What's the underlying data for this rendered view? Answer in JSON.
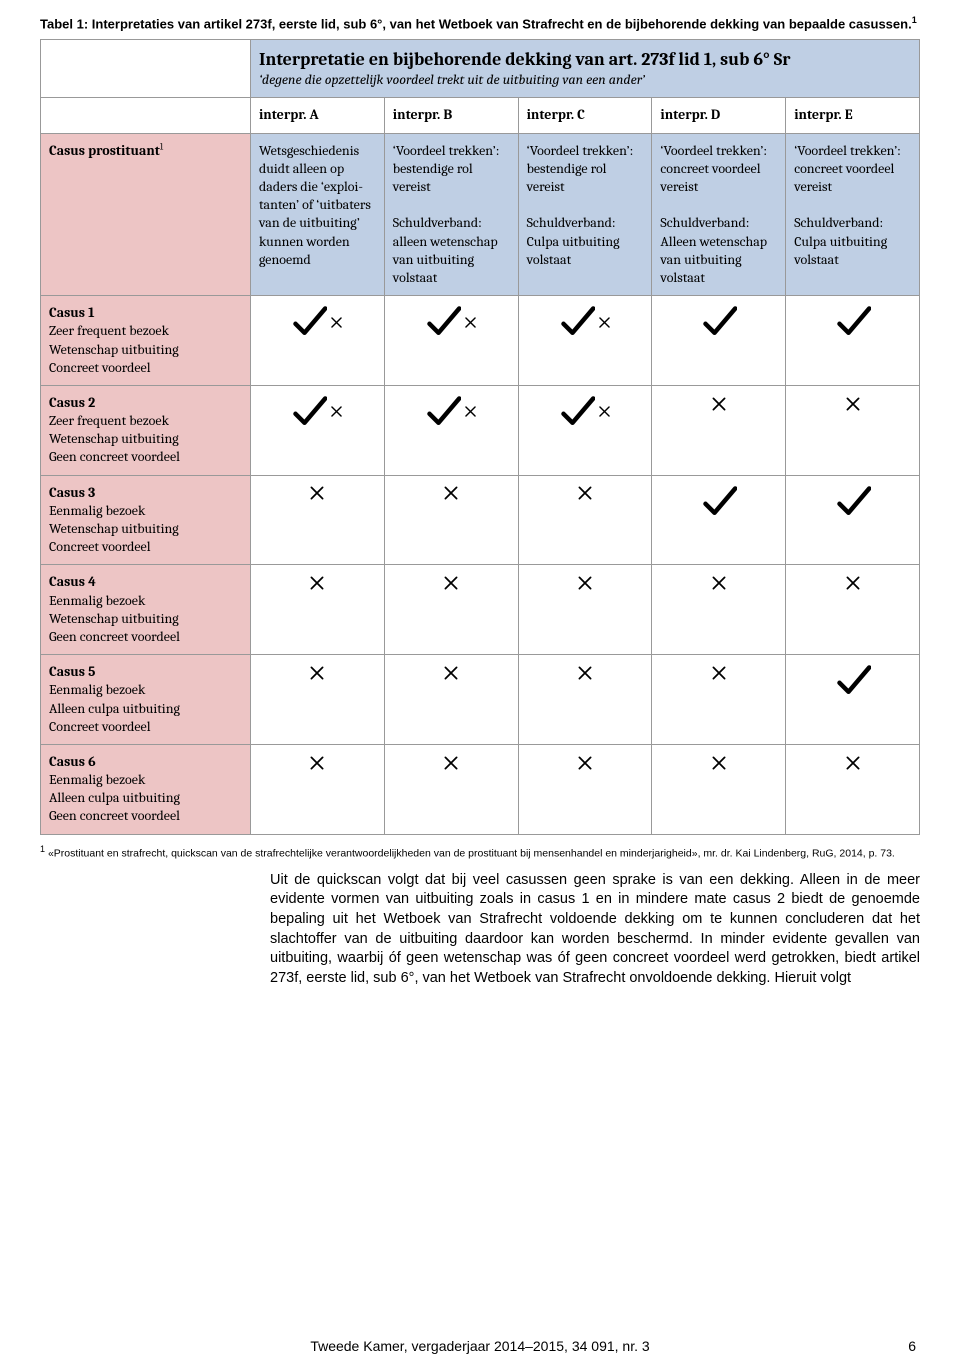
{
  "caption": "Tabel 1: Interpretaties van artikel 273f, eerste lid, sub 6°, van het Wetboek van Strafrecht en de bijbehorende dekking van bepaalde casussen.",
  "caption_sup": "1",
  "table": {
    "title": "Interpretatie en bijbehorende dekking van art. 273f lid 1, sub 6° Sr",
    "subtitle": "‘degene die opzettelijk voordeel trekt uit de uitbuiting van een ander’",
    "colors": {
      "header_bg": "#bfcfe4",
      "rowlabel_bg": "#edc5c5",
      "desc_bg": "#bfcfe4",
      "border": "#999999"
    },
    "col_header_row": [
      "",
      "interpr. A",
      "interpr. B",
      "interpr. C",
      "interpr. D",
      "interpr. E"
    ],
    "prostituant_row": {
      "label_title": "Casus prostituant",
      "label_sup": "1",
      "cells": [
        "Wetsgeschiedenis duidt alleen op daders die ‘exploi­tanten’ of ‘uitbaters van de uitbuiting’ kunnen worden genoemd",
        "‘Voordeel trekken’: bestendige rol vereist\n\nSchuldverband: alleen wetenschap van uitbuiting volstaat",
        "‘Voordeel trekken’: bestendige rol vereist\n\nSchuldverband: Culpa uitbuiting volstaat",
        "‘Voordeel trekken’: concreet voordeel vereist\n\nSchuldverband: Alleen wetenschap van uitbuiting volstaat",
        "‘Voordeel trekken’: concreet voordeel vereist\n\nSchuldverband: Culpa uitbuiting volstaat"
      ]
    },
    "casus_rows": [
      {
        "title": "Casus 1",
        "desc": "Zeer frequent bezoek\nWetenschap uitbuiting\nConcreet voordeel",
        "marks": [
          "check-x",
          "check-x",
          "check-x",
          "check",
          "check"
        ]
      },
      {
        "title": "Casus 2",
        "desc": "Zeer frequent bezoek\nWetenschap uitbuiting\nGeen concreet voordeel",
        "marks": [
          "check-x",
          "check-x",
          "check-x",
          "x",
          "x"
        ]
      },
      {
        "title": "Casus 3",
        "desc": "Eenmalig bezoek\nWetenschap uitbuiting\nConcreet voordeel",
        "marks": [
          "x",
          "x",
          "x",
          "check",
          "check"
        ]
      },
      {
        "title": "Casus 4",
        "desc": "Eenmalig bezoek\nWetenschap uitbuiting\nGeen concreet voordeel",
        "marks": [
          "x",
          "x",
          "x",
          "x",
          "x"
        ]
      },
      {
        "title": "Casus 5",
        "desc": "Eenmalig bezoek\nAlleen culpa uitbuiting\nConcreet voordeel",
        "marks": [
          "x",
          "x",
          "x",
          "x",
          "check"
        ]
      },
      {
        "title": "Casus 6",
        "desc": "Eenmalig bezoek\nAlleen culpa uitbuiting\nGeen concreet voordeel",
        "marks": [
          "x",
          "x",
          "x",
          "x",
          "x"
        ]
      }
    ]
  },
  "footnote_sup": "1",
  "footnote": "«Prostituant en strafrecht, quickscan van de strafrechtelijke verantwoordelijkheden van de prostituant bij mensenhandel en minderjarigheid», mr. dr. Kai Lindenberg, RuG, 2014, p. 73.",
  "body": "Uit de quickscan volgt dat bij veel casussen geen sprake is van een dekking. Alleen in de meer evidente vormen van uitbuiting zoals in casus 1 en in mindere mate casus 2 biedt de genoemde bepaling uit het Wetboek van Strafrecht voldoende dekking om te kunnen concluderen dat het slachtoffer van de uitbuiting daardoor kan worden beschermd. In minder evidente gevallen van uitbuiting, waarbij óf geen wetenschap was óf geen concreet voordeel werd getrokken, biedt artikel 273f, eerste lid, sub 6°, van het Wetboek van Strafrecht onvoldoende dekking. Hieruit volgt",
  "footer": "Tweede Kamer, vergaderjaar 2014–2015, 34 091, nr. 3",
  "page_number": "6"
}
